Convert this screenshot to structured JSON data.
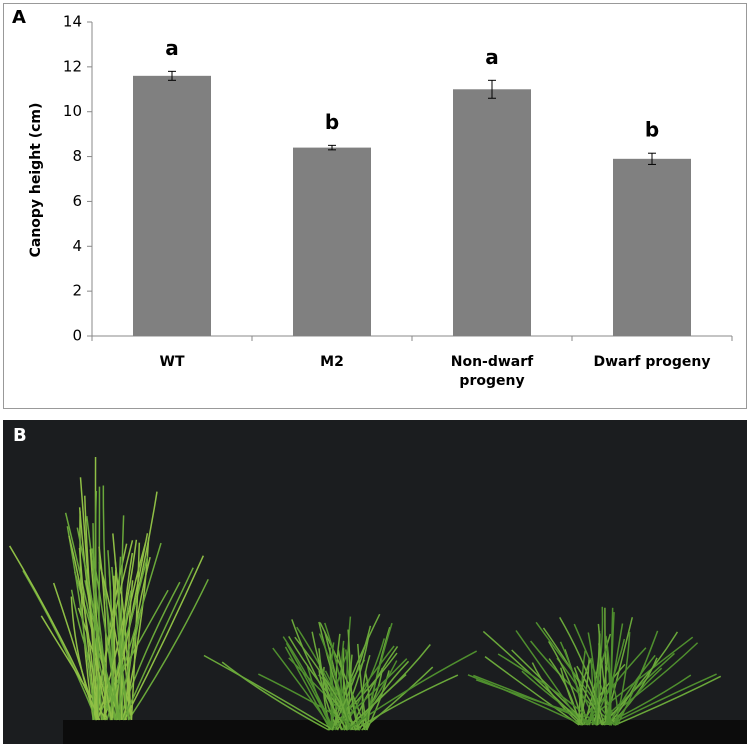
{
  "chart_data": {
    "type": "bar",
    "panel_label": "A",
    "y_label": "Canopy height (cm)",
    "categories": [
      "WT",
      "M2",
      "Non-dwarf progeny",
      "Dwarf progeny"
    ],
    "values": [
      11.6,
      8.4,
      11.0,
      7.9
    ],
    "errors": [
      0.2,
      0.1,
      0.4,
      0.25
    ],
    "letters": [
      "a",
      "b",
      "a",
      "b"
    ],
    "color": "#808080",
    "ylim": [
      0,
      14
    ],
    "yticks": [
      0,
      2,
      4,
      6,
      8,
      10,
      12,
      14
    ]
  },
  "photo": {
    "panel_label": "B"
  }
}
